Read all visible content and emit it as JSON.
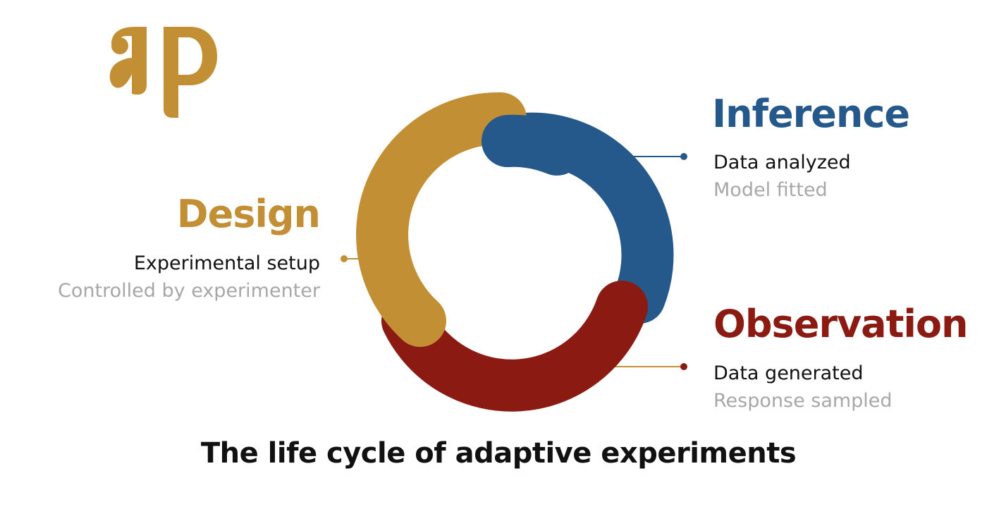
{
  "colors": {
    "design": "#c38f35",
    "inference": "#25588b",
    "observation": "#8b1b12",
    "text_primary": "#111111",
    "text_secondary": "#a7a7a7"
  },
  "logo": {
    "icon": "ap-monogram-icon"
  },
  "stages": {
    "design": {
      "title": "Design",
      "line1": "Experimental setup",
      "line2": "Controlled by experimenter"
    },
    "inference": {
      "title": "Inference",
      "line1": "Data analyzed",
      "line2": "Model fitted"
    },
    "observation": {
      "title": "Observation",
      "line1": "Data generated",
      "line2": "Response sampled"
    }
  },
  "caption": "The life cycle of adaptive experiments"
}
